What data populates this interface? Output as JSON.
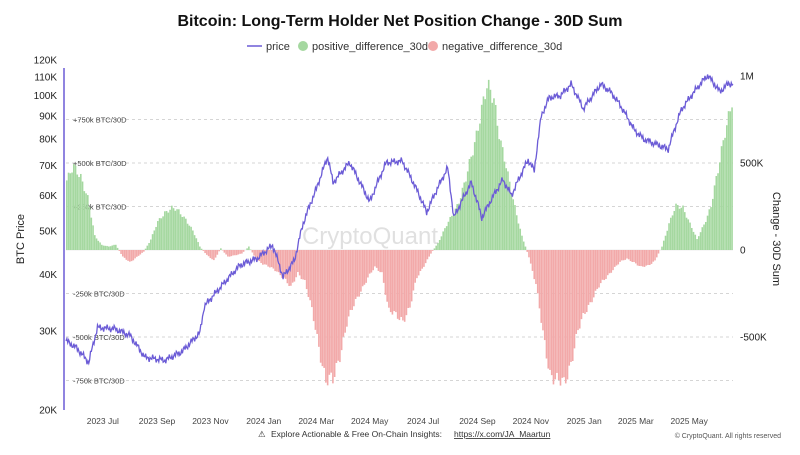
{
  "chart_data": {
    "type": "bar+line",
    "title": "Bitcoin: Long-Term Holder Net Position Change - 30D Sum",
    "legend": [
      "price",
      "positive_difference_30d",
      "negative_difference_30d"
    ],
    "legend_placement": "top-center",
    "ylabel_left": "BTC Price",
    "ylabel_right": "Change - 30D Sum",
    "left_axis": {
      "scale": "log",
      "ylim": [
        20000,
        120000
      ],
      "ticks": [
        "20K",
        "30K",
        "40K",
        "50K",
        "60K",
        "70K",
        "80K",
        "90K",
        "100K",
        "110K",
        "120K"
      ]
    },
    "right_axis": {
      "ylim": [
        -900000,
        1050000
      ],
      "ticks": [
        "1M",
        "500K",
        "0",
        "-500K"
      ]
    },
    "x_ticks": [
      "2023 Jul",
      "2023 Sep",
      "2023 Nov",
      "2024 Jan",
      "2024 Mar",
      "2024 May",
      "2024 Jul",
      "2024 Sep",
      "2024 Nov",
      "2025 Jan",
      "2025 Mar",
      "2025 May"
    ],
    "reference_lines": [
      "+750k BTC/30D",
      "+500k BTC/30D",
      "+250k BTC/30D",
      "-250k BTC/30D",
      "-500k BTC/30D",
      "-750k BTC/30D"
    ],
    "x_start": "2023-05-20",
    "x_end": "2025-06-20",
    "colors": {
      "price": "#6b5bd6",
      "positive": "#a5d8a0",
      "negative": "#f2a9a9"
    },
    "price": [
      [
        "2023-05-20",
        28500
      ],
      [
        "2023-06-01",
        27500
      ],
      [
        "2023-06-15",
        25500
      ],
      [
        "2023-06-25",
        30500
      ],
      [
        "2023-07-15",
        30300
      ],
      [
        "2023-08-01",
        29300
      ],
      [
        "2023-08-18",
        26200
      ],
      [
        "2023-09-10",
        25800
      ],
      [
        "2023-09-30",
        27000
      ],
      [
        "2023-10-20",
        29700
      ],
      [
        "2023-10-25",
        34000
      ],
      [
        "2023-11-10",
        37000
      ],
      [
        "2023-12-05",
        42000
      ],
      [
        "2023-12-25",
        43500
      ],
      [
        "2024-01-11",
        46500
      ],
      [
        "2024-01-23",
        39500
      ],
      [
        "2024-02-05",
        43000
      ],
      [
        "2024-02-15",
        52000
      ],
      [
        "2024-03-01",
        62000
      ],
      [
        "2024-03-14",
        73000
      ],
      [
        "2024-03-20",
        64000
      ],
      [
        "2024-04-08",
        71000
      ],
      [
        "2024-04-20",
        64000
      ],
      [
        "2024-05-01",
        58000
      ],
      [
        "2024-05-20",
        71000
      ],
      [
        "2024-06-07",
        71500
      ],
      [
        "2024-06-25",
        61000
      ],
      [
        "2024-07-05",
        55000
      ],
      [
        "2024-07-29",
        69000
      ],
      [
        "2024-08-05",
        53500
      ],
      [
        "2024-08-25",
        64000
      ],
      [
        "2024-09-06",
        53500
      ],
      [
        "2024-09-30",
        65000
      ],
      [
        "2024-10-10",
        60000
      ],
      [
        "2024-10-29",
        72000
      ],
      [
        "2024-11-05",
        68000
      ],
      [
        "2024-11-13",
        90000
      ],
      [
        "2024-11-22",
        99000
      ],
      [
        "2024-12-05",
        100000
      ],
      [
        "2024-12-17",
        106000
      ],
      [
        "2024-12-31",
        93500
      ],
      [
        "2025-01-20",
        106000
      ],
      [
        "2025-01-31",
        102000
      ],
      [
        "2025-02-10",
        96000
      ],
      [
        "2025-02-27",
        84000
      ],
      [
        "2025-03-10",
        80000
      ],
      [
        "2025-04-07",
        76000
      ],
      [
        "2025-04-22",
        93000
      ],
      [
        "2025-05-10",
        104000
      ],
      [
        "2025-05-22",
        111000
      ],
      [
        "2025-06-05",
        102000
      ],
      [
        "2025-06-15",
        106500
      ],
      [
        "2025-06-20",
        106000
      ]
    ],
    "net_position_change": [
      [
        "2023-05-20",
        400000
      ],
      [
        "2023-05-28",
        470000
      ],
      [
        "2023-06-05",
        430000
      ],
      [
        "2023-06-13",
        300000
      ],
      [
        "2023-06-21",
        80000
      ],
      [
        "2023-06-29",
        30000
      ],
      [
        "2023-07-07",
        20000
      ],
      [
        "2023-07-15",
        30000
      ],
      [
        "2023-07-23",
        -40000
      ],
      [
        "2023-07-31",
        -70000
      ],
      [
        "2023-08-08",
        -40000
      ],
      [
        "2023-08-16",
        -10000
      ],
      [
        "2023-08-24",
        60000
      ],
      [
        "2023-09-01",
        160000
      ],
      [
        "2023-09-09",
        220000
      ],
      [
        "2023-09-17",
        240000
      ],
      [
        "2023-09-25",
        220000
      ],
      [
        "2023-10-03",
        180000
      ],
      [
        "2023-10-11",
        110000
      ],
      [
        "2023-10-19",
        20000
      ],
      [
        "2023-10-27",
        -30000
      ],
      [
        "2023-11-04",
        -60000
      ],
      [
        "2023-11-12",
        10000
      ],
      [
        "2023-11-20",
        -40000
      ],
      [
        "2023-11-28",
        -30000
      ],
      [
        "2023-12-06",
        -20000
      ],
      [
        "2023-12-14",
        20000
      ],
      [
        "2023-12-22",
        -50000
      ],
      [
        "2023-12-30",
        -80000
      ],
      [
        "2024-01-07",
        -100000
      ],
      [
        "2024-01-15",
        -120000
      ],
      [
        "2024-01-23",
        -160000
      ],
      [
        "2024-01-31",
        -220000
      ],
      [
        "2024-02-08",
        -130000
      ],
      [
        "2024-02-16",
        -180000
      ],
      [
        "2024-02-24",
        -350000
      ],
      [
        "2024-03-03",
        -550000
      ],
      [
        "2024-03-11",
        -750000
      ],
      [
        "2024-03-19",
        -760000
      ],
      [
        "2024-03-27",
        -600000
      ],
      [
        "2024-04-04",
        -420000
      ],
      [
        "2024-04-12",
        -320000
      ],
      [
        "2024-04-20",
        -230000
      ],
      [
        "2024-04-28",
        -160000
      ],
      [
        "2024-05-06",
        -100000
      ],
      [
        "2024-05-14",
        -130000
      ],
      [
        "2024-05-22",
        -350000
      ],
      [
        "2024-05-30",
        -380000
      ],
      [
        "2024-06-07",
        -400000
      ],
      [
        "2024-06-15",
        -330000
      ],
      [
        "2024-06-23",
        -160000
      ],
      [
        "2024-07-01",
        -90000
      ],
      [
        "2024-07-09",
        -20000
      ],
      [
        "2024-07-17",
        40000
      ],
      [
        "2024-07-25",
        120000
      ],
      [
        "2024-08-02",
        200000
      ],
      [
        "2024-08-10",
        280000
      ],
      [
        "2024-08-18",
        400000
      ],
      [
        "2024-08-26",
        580000
      ],
      [
        "2024-09-03",
        770000
      ],
      [
        "2024-09-11",
        920000
      ],
      [
        "2024-09-19",
        880000
      ],
      [
        "2024-09-27",
        620000
      ],
      [
        "2024-10-05",
        420000
      ],
      [
        "2024-10-13",
        250000
      ],
      [
        "2024-10-21",
        80000
      ],
      [
        "2024-10-29",
        -40000
      ],
      [
        "2024-11-06",
        -200000
      ],
      [
        "2024-11-14",
        -480000
      ],
      [
        "2024-11-22",
        -700000
      ],
      [
        "2024-11-30",
        -760000
      ],
      [
        "2024-12-08",
        -770000
      ],
      [
        "2024-12-16",
        -640000
      ],
      [
        "2024-12-24",
        -470000
      ],
      [
        "2025-01-01",
        -360000
      ],
      [
        "2025-01-09",
        -280000
      ],
      [
        "2025-01-17",
        -210000
      ],
      [
        "2025-01-25",
        -160000
      ],
      [
        "2025-02-02",
        -110000
      ],
      [
        "2025-02-10",
        -70000
      ],
      [
        "2025-02-18",
        -50000
      ],
      [
        "2025-02-26",
        -70000
      ],
      [
        "2025-03-06",
        -100000
      ],
      [
        "2025-03-14",
        -90000
      ],
      [
        "2025-03-22",
        -60000
      ],
      [
        "2025-03-30",
        20000
      ],
      [
        "2025-04-07",
        150000
      ],
      [
        "2025-04-15",
        250000
      ],
      [
        "2025-04-23",
        250000
      ],
      [
        "2025-05-01",
        150000
      ],
      [
        "2025-05-09",
        60000
      ],
      [
        "2025-05-17",
        150000
      ],
      [
        "2025-05-25",
        250000
      ],
      [
        "2025-06-02",
        450000
      ],
      [
        "2025-06-10",
        700000
      ],
      [
        "2025-06-18",
        850000
      ]
    ]
  },
  "watermark": "CryptoQuant",
  "footer": {
    "text": "Explore Actionable & Free On-Chain Insights:",
    "link": "https://x.com/JA_Maartun",
    "credit": "© CryptoQuant. All rights reserved"
  }
}
